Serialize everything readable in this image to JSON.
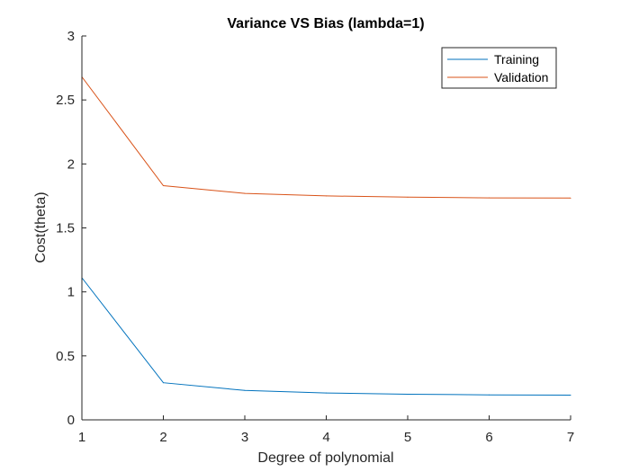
{
  "chart_data": {
    "type": "line",
    "title": "Variance VS Bias (lambda=1)",
    "xlabel": "Degree of polynomial",
    "ylabel": "Cost(theta)",
    "xlim": [
      1,
      7
    ],
    "ylim": [
      0,
      3
    ],
    "xticks": [
      "1",
      "2",
      "3",
      "4",
      "5",
      "6",
      "7"
    ],
    "yticks": [
      "0",
      "0.5",
      "1",
      "1.5",
      "2",
      "2.5",
      "3"
    ],
    "xtick_values": [
      1,
      2,
      3,
      4,
      5,
      6,
      7
    ],
    "ytick_values": [
      0,
      0.5,
      1,
      1.5,
      2,
      2.5,
      3
    ],
    "grid": false,
    "legend_position": "top-right",
    "x": [
      1,
      2,
      3,
      4,
      5,
      6,
      7
    ],
    "series": [
      {
        "name": "Training",
        "color": "#0072BD",
        "values": [
          1.11,
          0.29,
          0.23,
          0.21,
          0.2,
          0.195,
          0.193
        ]
      },
      {
        "name": "Validation",
        "color": "#D95319",
        "values": [
          2.68,
          1.83,
          1.77,
          1.75,
          1.74,
          1.735,
          1.733
        ]
      }
    ]
  }
}
